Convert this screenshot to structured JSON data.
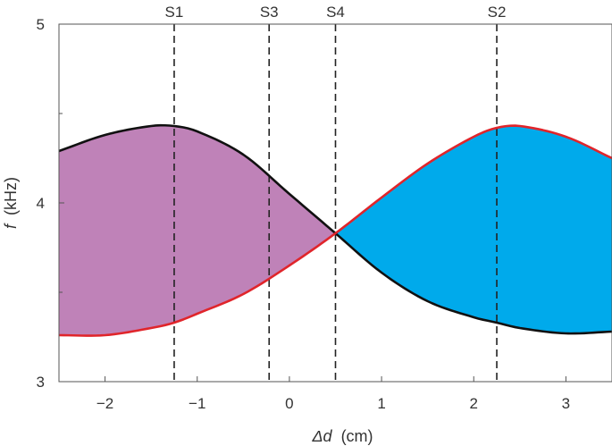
{
  "chart_data": {
    "type": "area",
    "xlabel_symbol": "Δd",
    "xlabel_unit": "(cm)",
    "ylabel_symbol": "f",
    "ylabel_unit": "(kHz)",
    "xlim": [
      -2.5,
      3.5
    ],
    "ylim": [
      3,
      5
    ],
    "x_ticks": [
      -2,
      -1,
      0,
      1,
      2,
      3
    ],
    "x_tick_labels": [
      "−2",
      "−1",
      "0",
      "1",
      "2",
      "3"
    ],
    "y_ticks": [
      3,
      4,
      5
    ],
    "y_tick_labels": [
      "3",
      "4",
      "5"
    ],
    "y_minor_ticks": [
      3.5,
      4.5
    ],
    "grid": false,
    "crossing_point": {
      "x": 0.5,
      "y": 3.83
    },
    "markers": [
      {
        "label": "S1",
        "x": -1.25
      },
      {
        "label": "S3",
        "x": -0.22
      },
      {
        "label": "S4",
        "x": 0.5
      },
      {
        "label": "S2",
        "x": 2.25
      }
    ],
    "series": [
      {
        "color": "#111111",
        "x": [
          -2.5,
          -2.0,
          -1.5,
          -1.25,
          -1.0,
          -0.5,
          0.0,
          0.5,
          1.0,
          1.5,
          2.0,
          2.25,
          2.5,
          3.0,
          3.5
        ],
        "y": [
          4.29,
          4.38,
          4.43,
          4.43,
          4.4,
          4.27,
          4.05,
          3.83,
          3.61,
          3.45,
          3.36,
          3.33,
          3.3,
          3.27,
          3.28
        ]
      },
      {
        "color": "#e0252b",
        "x": [
          -2.5,
          -2.0,
          -1.5,
          -1.25,
          -1.0,
          -0.5,
          0.0,
          0.5,
          1.0,
          1.5,
          2.0,
          2.25,
          2.5,
          3.0,
          3.5
        ],
        "y": [
          3.26,
          3.26,
          3.3,
          3.33,
          3.38,
          3.49,
          3.65,
          3.83,
          4.03,
          4.22,
          4.37,
          4.42,
          4.43,
          4.37,
          4.25
        ]
      }
    ],
    "fills": [
      {
        "region": "left",
        "color": "#bf82b8"
      },
      {
        "region": "right",
        "color": "#00aaeb"
      }
    ]
  }
}
